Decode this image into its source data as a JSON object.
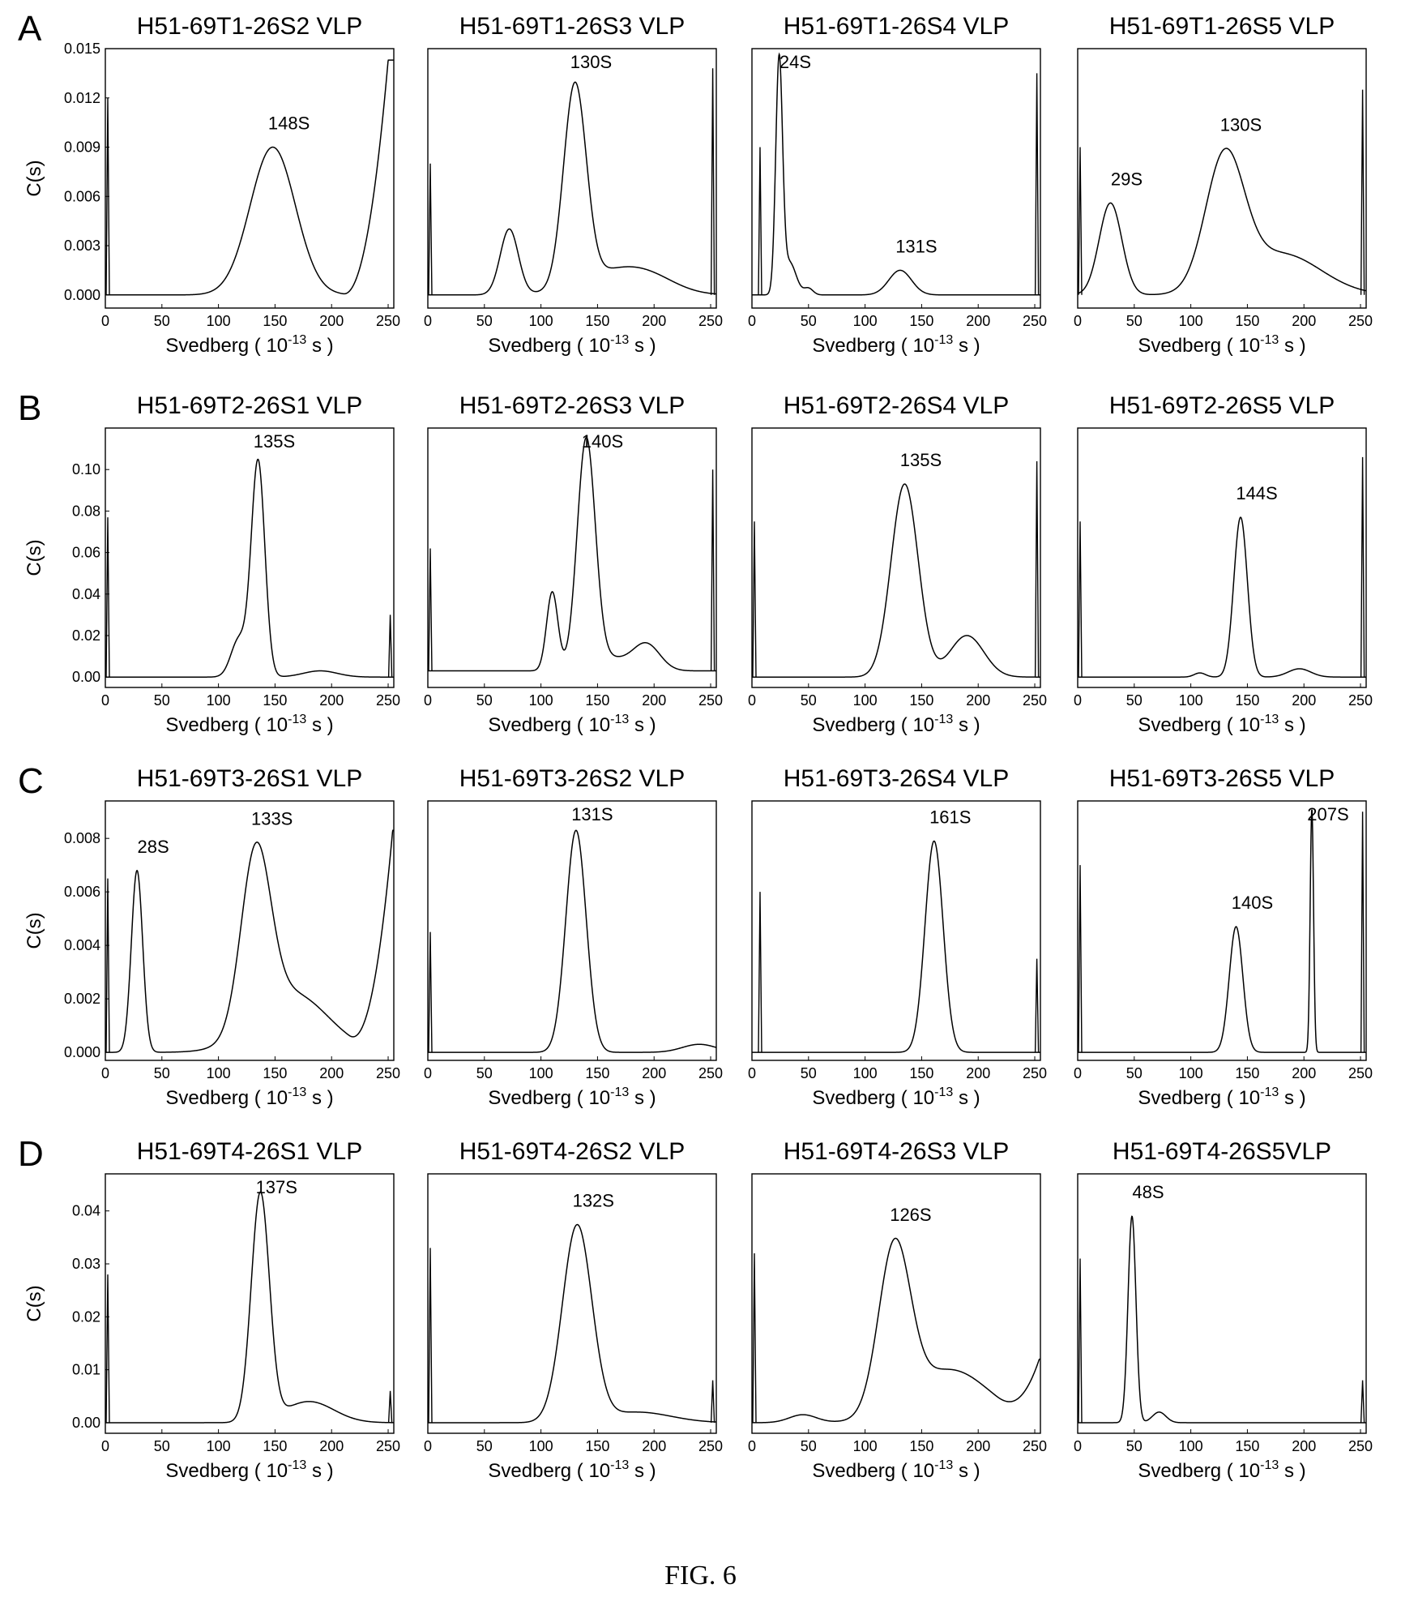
{
  "figure": {
    "caption": "FIG. 6",
    "x_axis_label": "Svedberg",
    "x_axis_unit": "( 10",
    "x_axis_exponent": "-13",
    "x_axis_unit_end": "s )",
    "y_axis_label": "C(s)",
    "x_ticks": [
      "0",
      "50",
      "100",
      "150",
      "200",
      "250"
    ]
  },
  "rows": [
    {
      "label": "A",
      "y_ticks": [
        "0.000",
        "0.003",
        "0.006",
        "0.009",
        "0.012",
        "0.015"
      ],
      "y_values": [
        0,
        0.003,
        0.006,
        0.009,
        0.012,
        0.015
      ]
    },
    {
      "label": "B",
      "y_ticks": [
        "0.00",
        "0.02",
        "0.04",
        "0.06",
        "0.08",
        "0.10"
      ],
      "y_values": [
        0,
        0.02,
        0.04,
        0.06,
        0.08,
        0.1
      ]
    },
    {
      "label": "C",
      "y_ticks": [
        "0.000",
        "0.002",
        "0.004",
        "0.006",
        "0.008"
      ],
      "y_values": [
        0,
        0.002,
        0.004,
        0.006,
        0.008
      ]
    },
    {
      "label": "D",
      "y_ticks": [
        "0.00",
        "0.01",
        "0.02",
        "0.03",
        "0.04"
      ],
      "y_values": [
        0,
        0.01,
        0.02,
        0.03,
        0.04
      ]
    }
  ],
  "chart_data": [
    {
      "type": "line",
      "row": "A",
      "title": "H51-69T1-26S2 VLP",
      "xlim": [
        0,
        255
      ],
      "ylim": [
        -0.0008,
        0.015
      ],
      "peaks": [
        {
          "x": 148,
          "y": 0.009,
          "w": 20
        }
      ],
      "edge_spikes": [
        {
          "x": 0,
          "h": 0.012
        }
      ],
      "right_rise": {
        "start": 210,
        "end_x": 250,
        "end_y": 0.0143,
        "valley": 0.0012
      },
      "baseline": 0,
      "annotations": [
        {
          "text": "148S",
          "x": 148
        }
      ]
    },
    {
      "type": "line",
      "row": "A",
      "title": "H51-69T1-26S3 VLP",
      "xlim": [
        0,
        255
      ],
      "ylim": [
        -0.0008,
        0.015
      ],
      "peaks": [
        {
          "x": 72,
          "y": 0.004,
          "w": 8
        },
        {
          "x": 130,
          "y": 0.0122,
          "w": 10
        },
        {
          "x": 195,
          "y": 0.0009,
          "w": 25
        }
      ],
      "shoulders": [
        {
          "x": 160,
          "y": 0.0012,
          "w": 30
        }
      ],
      "edge_spikes": [
        {
          "x": 0,
          "h": 0.008
        },
        {
          "x": 254,
          "h": 0.0138
        }
      ],
      "baseline": 0,
      "annotations": [
        {
          "text": "130S",
          "x": 130
        }
      ]
    },
    {
      "type": "line",
      "row": "A",
      "title": "H51-69T1-26S4 VLP",
      "xlim": [
        0,
        255
      ],
      "ylim": [
        -0.0008,
        0.015
      ],
      "peaks": [
        {
          "x": 24,
          "y": 0.014,
          "w": 3
        },
        {
          "x": 50,
          "y": 0.0004,
          "w": 4
        },
        {
          "x": 131,
          "y": 0.0015,
          "w": 10
        }
      ],
      "shoulders": [
        {
          "x": 33,
          "y": 0.002,
          "w": 6
        }
      ],
      "edge_spikes": [
        {
          "x": 5,
          "h": 0.009
        },
        {
          "x": 254,
          "h": 0.0135
        }
      ],
      "baseline": 0,
      "annotations": [
        {
          "text": "24S",
          "x": 24
        },
        {
          "text": "131S",
          "x": 131
        }
      ]
    },
    {
      "type": "line",
      "row": "A",
      "title": "H51-69T1-26S5 VLP",
      "xlim": [
        0,
        255
      ],
      "ylim": [
        -0.0008,
        0.015
      ],
      "peaks": [
        {
          "x": 29,
          "y": 0.0056,
          "w": 10
        },
        {
          "x": 130,
          "y": 0.008,
          "w": 17
        }
      ],
      "shoulders": [
        {
          "x": 180,
          "y": 0.0025,
          "w": 35
        }
      ],
      "edge_spikes": [
        {
          "x": 0,
          "h": 0.009
        },
        {
          "x": 254,
          "h": 0.0125
        }
      ],
      "baseline": 0,
      "annotations": [
        {
          "text": "29S",
          "x": 29
        },
        {
          "text": "130S",
          "x": 130
        }
      ]
    },
    {
      "type": "line",
      "row": "B",
      "title": "H51-69T2-26S1 VLP",
      "xlim": [
        0,
        255
      ],
      "ylim": [
        -0.005,
        0.12
      ],
      "peaks": [
        {
          "x": 135,
          "y": 0.104,
          "w": 6
        },
        {
          "x": 190,
          "y": 0.003,
          "w": 15
        }
      ],
      "shoulders": [
        {
          "x": 118,
          "y": 0.018,
          "w": 7
        }
      ],
      "edge_spikes": [
        {
          "x": 0,
          "h": 0.077
        },
        {
          "x": 254,
          "h": 0.03
        }
      ],
      "baseline": 0,
      "annotations": [
        {
          "text": "135S",
          "x": 135
        }
      ]
    },
    {
      "type": "line",
      "row": "B",
      "title": "H51-69T2-26S3 VLP",
      "xlim": [
        0,
        255
      ],
      "ylim": [
        -0.005,
        0.12
      ],
      "peaks": [
        {
          "x": 110,
          "y": 0.038,
          "w": 5
        },
        {
          "x": 140,
          "y": 0.11,
          "w": 8
        },
        {
          "x": 193,
          "y": 0.013,
          "w": 12
        }
      ],
      "shoulders": [
        {
          "x": 160,
          "y": 0.006,
          "w": 15
        }
      ],
      "edge_spikes": [
        {
          "x": 0,
          "h": 0.062
        },
        {
          "x": 254,
          "h": 0.1
        }
      ],
      "baseline": 0.003,
      "annotations": [
        {
          "text": "140S",
          "x": 140
        }
      ]
    },
    {
      "type": "line",
      "row": "B",
      "title": "H51-69T2-26S4 VLP",
      "xlim": [
        0,
        255
      ],
      "ylim": [
        -0.005,
        0.12
      ],
      "peaks": [
        {
          "x": 135,
          "y": 0.093,
          "w": 12
        },
        {
          "x": 190,
          "y": 0.02,
          "w": 15
        }
      ],
      "edge_spikes": [
        {
          "x": 0,
          "h": 0.075
        },
        {
          "x": 254,
          "h": 0.104
        }
      ],
      "baseline": 0,
      "annotations": [
        {
          "text": "135S",
          "x": 135
        }
      ]
    },
    {
      "type": "line",
      "row": "B",
      "title": "H51-69T2-26S5 VLP",
      "xlim": [
        0,
        255
      ],
      "ylim": [
        -0.005,
        0.12
      ],
      "peaks": [
        {
          "x": 108,
          "y": 0.002,
          "w": 5
        },
        {
          "x": 144,
          "y": 0.077,
          "w": 6
        },
        {
          "x": 196,
          "y": 0.004,
          "w": 10
        }
      ],
      "edge_spikes": [
        {
          "x": 0,
          "h": 0.075
        },
        {
          "x": 254,
          "h": 0.106
        }
      ],
      "baseline": 0,
      "annotations": [
        {
          "text": "144S",
          "x": 144
        }
      ]
    },
    {
      "type": "line",
      "row": "C",
      "title": "H51-69T3-26S1 VLP",
      "xlim": [
        0,
        255
      ],
      "ylim": [
        -0.0003,
        0.0094
      ],
      "peaks": [
        {
          "x": 28,
          "y": 0.0068,
          "w": 5
        },
        {
          "x": 133,
          "y": 0.0065,
          "w": 13
        }
      ],
      "shoulders": [
        {
          "x": 165,
          "y": 0.0022,
          "w": 32
        }
      ],
      "edge_spikes": [
        {
          "x": 0,
          "h": 0.0065
        }
      ],
      "right_rise": {
        "start": 215,
        "end_x": 254,
        "end_y": 0.0083,
        "valley": 0.0012
      },
      "baseline": 0,
      "annotations": [
        {
          "text": "28S",
          "x": 28
        },
        {
          "text": "133S",
          "x": 133
        }
      ]
    },
    {
      "type": "line",
      "row": "C",
      "title": "H51-69T3-26S2 VLP",
      "xlim": [
        0,
        255
      ],
      "ylim": [
        -0.0003,
        0.0094
      ],
      "peaks": [
        {
          "x": 131,
          "y": 0.0083,
          "w": 9
        },
        {
          "x": 240,
          "y": 0.0003,
          "w": 15
        }
      ],
      "edge_spikes": [
        {
          "x": 0,
          "h": 0.0045
        }
      ],
      "baseline": 0,
      "annotations": [
        {
          "text": "131S",
          "x": 131
        }
      ]
    },
    {
      "type": "line",
      "row": "C",
      "title": "H51-69T3-26S4 VLP",
      "xlim": [
        0,
        255
      ],
      "ylim": [
        -0.0003,
        0.0094
      ],
      "peaks": [
        {
          "x": 161,
          "y": 0.0079,
          "w": 8
        }
      ],
      "edge_spikes": [
        {
          "x": 5,
          "h": 0.006
        },
        {
          "x": 254,
          "h": 0.0035
        }
      ],
      "baseline": 0,
      "annotations": [
        {
          "text": "161S",
          "x": 161
        }
      ]
    },
    {
      "type": "line",
      "row": "C",
      "title": "H51-69T3-26S5 VLP",
      "xlim": [
        0,
        255
      ],
      "ylim": [
        -0.0003,
        0.0094
      ],
      "peaks": [
        {
          "x": 140,
          "y": 0.0047,
          "w": 6
        },
        {
          "x": 207,
          "y": 0.0091,
          "w": 1.5
        }
      ],
      "edge_spikes": [
        {
          "x": 0,
          "h": 0.007
        },
        {
          "x": 254,
          "h": 0.009
        }
      ],
      "baseline": 0,
      "annotations": [
        {
          "text": "140S",
          "x": 140
        },
        {
          "text": "207S",
          "x": 207
        }
      ]
    },
    {
      "type": "line",
      "row": "D",
      "title": "H51-69T4-26S1 VLP",
      "xlim": [
        0,
        255
      ],
      "ylim": [
        -0.002,
        0.047
      ],
      "peaks": [
        {
          "x": 137,
          "y": 0.043,
          "w": 8
        },
        {
          "x": 180,
          "y": 0.004,
          "w": 22
        }
      ],
      "edge_spikes": [
        {
          "x": 0,
          "h": 0.028
        },
        {
          "x": 254,
          "h": 0.006
        }
      ],
      "baseline": 0,
      "annotations": [
        {
          "text": "137S",
          "x": 137
        }
      ]
    },
    {
      "type": "line",
      "row": "D",
      "title": "H51-69T4-26S2 VLP",
      "xlim": [
        0,
        255
      ],
      "ylim": [
        -0.002,
        0.047
      ],
      "peaks": [
        {
          "x": 132,
          "y": 0.037,
          "w": 13
        }
      ],
      "shoulders": [
        {
          "x": 185,
          "y": 0.002,
          "w": 30
        }
      ],
      "edge_spikes": [
        {
          "x": 0,
          "h": 0.033
        },
        {
          "x": 254,
          "h": 0.008
        }
      ],
      "baseline": 0,
      "annotations": [
        {
          "text": "132S",
          "x": 132
        }
      ]
    },
    {
      "type": "line",
      "row": "D",
      "title": "H51-69T4-26S3 VLP",
      "xlim": [
        0,
        255
      ],
      "ylim": [
        -0.002,
        0.047
      ],
      "peaks": [
        {
          "x": 45,
          "y": 0.0015,
          "w": 12
        },
        {
          "x": 126,
          "y": 0.031,
          "w": 14
        }
      ],
      "shoulders": [
        {
          "x": 175,
          "y": 0.01,
          "w": 35
        }
      ],
      "edge_spikes": [
        {
          "x": 0,
          "h": 0.032
        }
      ],
      "right_rise": {
        "start": 215,
        "end_x": 254,
        "end_y": 0.012,
        "valley": 0.007
      },
      "baseline": 0,
      "annotations": [
        {
          "text": "126S",
          "x": 126
        }
      ]
    },
    {
      "type": "line",
      "row": "D",
      "title": "H51-69T4-26S5VLP",
      "xlim": [
        0,
        255
      ],
      "ylim": [
        -0.002,
        0.047
      ],
      "peaks": [
        {
          "x": 48,
          "y": 0.039,
          "w": 3.5
        },
        {
          "x": 72,
          "y": 0.002,
          "w": 6
        }
      ],
      "edge_spikes": [
        {
          "x": 0,
          "h": 0.031
        },
        {
          "x": 254,
          "h": 0.008
        }
      ],
      "baseline": 0,
      "annotations": [
        {
          "text": "48S",
          "x": 48
        }
      ]
    }
  ]
}
